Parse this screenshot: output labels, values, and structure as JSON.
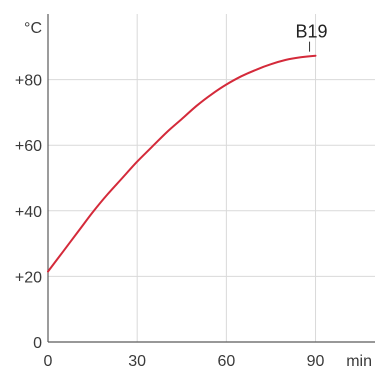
{
  "chart_data": {
    "type": "line",
    "xlabel": "min",
    "ylabel": "°C",
    "xlim": [
      0,
      110
    ],
    "ylim": [
      0,
      100
    ],
    "x_ticks": [
      0,
      30,
      60,
      90
    ],
    "y_ticks": [
      0,
      20,
      40,
      60,
      80
    ],
    "x_tick_labels": [
      "0",
      "30",
      "60",
      "90"
    ],
    "y_tick_labels": [
      "0",
      "+20",
      "+40",
      "+60",
      "+80"
    ],
    "grid": true,
    "colors": {
      "series": "#d42a3a",
      "grid": "#d9d9d9",
      "axis": "#5a5a5a"
    },
    "series": [
      {
        "name": "B19",
        "x": [
          0,
          5,
          10,
          15,
          20,
          25,
          30,
          35,
          40,
          45,
          50,
          55,
          60,
          65,
          70,
          75,
          80,
          85,
          90
        ],
        "y": [
          21.5,
          27.5,
          33.5,
          39.5,
          45,
          50,
          55,
          59.5,
          64,
          68,
          72,
          75.5,
          78.5,
          81,
          83,
          84.7,
          86,
          86.8,
          87.3
        ]
      }
    ]
  }
}
